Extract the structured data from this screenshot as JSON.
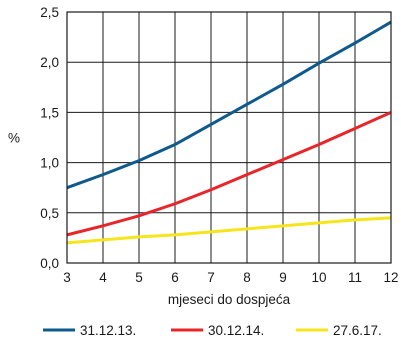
{
  "chart_data": {
    "type": "line",
    "xlabel": "mjeseci do dospjeća",
    "ylabel": "%",
    "xlim": [
      3,
      12
    ],
    "ylim": [
      0,
      2.5
    ],
    "grid": true,
    "legend_position": "bottom",
    "x_ticks": [
      "3",
      "4",
      "5",
      "6",
      "7",
      "8",
      "9",
      "10",
      "11",
      "12"
    ],
    "y_ticks": [
      "0,0",
      "0,5",
      "1,0",
      "1,5",
      "2,0",
      "2,5"
    ],
    "x": [
      3,
      4,
      5,
      6,
      7,
      8,
      9,
      10,
      11,
      12
    ],
    "series": [
      {
        "name": "31.12.13.",
        "color": "#0f5a8c",
        "values": [
          0.75,
          0.88,
          1.02,
          1.18,
          1.38,
          1.58,
          1.78,
          1.99,
          2.19,
          2.4
        ]
      },
      {
        "name": "30.12.14.",
        "color": "#e8262a",
        "values": [
          0.28,
          0.37,
          0.47,
          0.59,
          0.73,
          0.88,
          1.03,
          1.18,
          1.34,
          1.5
        ]
      },
      {
        "name": "27.6.17.",
        "color": "#f5e51a",
        "values": [
          0.2,
          0.23,
          0.26,
          0.28,
          0.31,
          0.34,
          0.37,
          0.4,
          0.43,
          0.45
        ]
      }
    ]
  }
}
